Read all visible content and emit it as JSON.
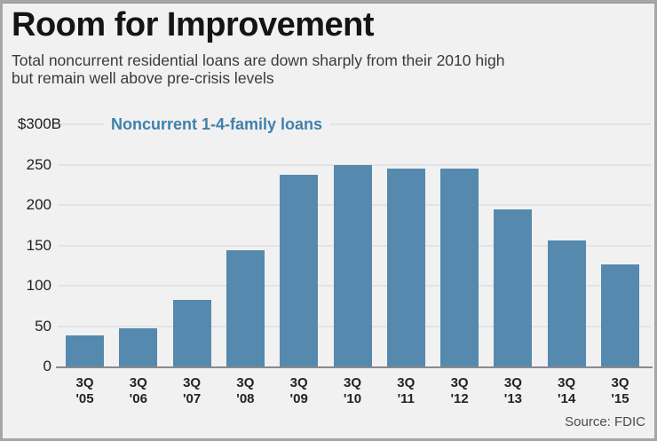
{
  "header": {
    "title": "Room for Improvement",
    "subtitle_line1": "Total noncurrent residential loans are down sharply from their 2010 high",
    "subtitle_line2": "but remain well above pre-crisis levels"
  },
  "legend": {
    "label": "Noncurrent 1-4-family loans",
    "color": "#4181ab"
  },
  "chart_data": {
    "type": "bar",
    "title": "Noncurrent 1-4-family loans",
    "categories": [
      "3Q '05",
      "3Q '06",
      "3Q '07",
      "3Q '08",
      "3Q '09",
      "3Q '10",
      "3Q '11",
      "3Q '12",
      "3Q '13",
      "3Q '14",
      "3Q '15"
    ],
    "values": [
      39,
      47,
      82,
      144,
      237,
      250,
      245,
      245,
      195,
      156,
      126
    ],
    "unit": "billions of dollars",
    "xlabel": "",
    "ylabel": "$B",
    "ylim": [
      0,
      300
    ],
    "y_ticks": [
      {
        "value": 300,
        "label": "$300B"
      },
      {
        "value": 250,
        "label": "250"
      },
      {
        "value": 200,
        "label": "200"
      },
      {
        "value": 150,
        "label": "150"
      },
      {
        "value": 100,
        "label": "100"
      },
      {
        "value": 50,
        "label": "50"
      },
      {
        "value": 0,
        "label": "0"
      }
    ],
    "grid": true,
    "legend_position": "top",
    "bar_color": "#5589ad"
  },
  "footer": {
    "source": "Source: FDIC"
  },
  "colors": {
    "background": "#f1f1f2",
    "gridline": "#e3e3e6",
    "axis_line": "#8a8a8e",
    "bar": "#5589ad",
    "legend_text": "#4181ab",
    "border": "#a6a6a9"
  }
}
